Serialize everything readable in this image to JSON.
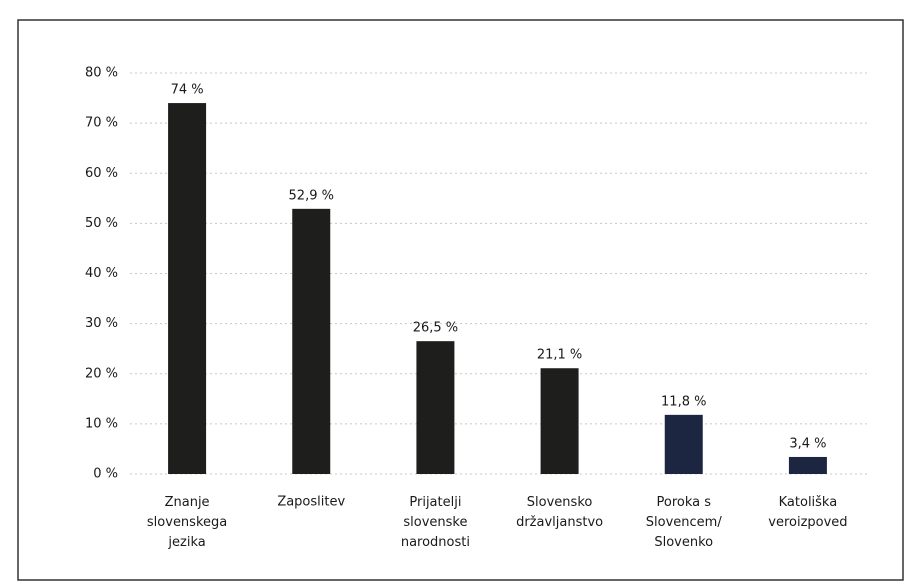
{
  "chart_data": {
    "type": "bar",
    "categories": [
      "Znanje\nslovenskega\njezika",
      "Zaposlitev",
      "Prijatelji\nslovenske\nnarodnosti",
      "Slovensko\ndržavljanstvo",
      "Poroka s\nSlovencem/\nSlovenko",
      "Katoliška\nveroizpoved"
    ],
    "values": [
      74,
      52.9,
      26.5,
      21.1,
      11.8,
      3.4
    ],
    "value_labels": [
      "74 %",
      "52,9 %",
      "26,5 %",
      "21,1 %",
      "11,8 %",
      "3,4 %"
    ],
    "colors": [
      "#1e1e1c",
      "#1e1e1c",
      "#1e1e1c",
      "#1e1e1c",
      "#1d2640",
      "#1d2640"
    ],
    "ylim": [
      0,
      80
    ],
    "yticks": [
      {
        "value": 0,
        "label": "0 %"
      },
      {
        "value": 10,
        "label": "10 %"
      },
      {
        "value": 20,
        "label": "20 %"
      },
      {
        "value": 30,
        "label": "30 %"
      },
      {
        "value": 40,
        "label": "40 %"
      },
      {
        "value": 50,
        "label": "50 %"
      },
      {
        "value": 60,
        "label": "60 %"
      },
      {
        "value": 70,
        "label": "70 %"
      },
      {
        "value": 80,
        "label": "80 %"
      }
    ],
    "grid": true
  }
}
